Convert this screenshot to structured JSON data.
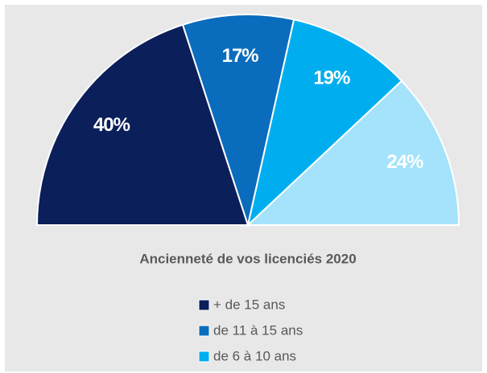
{
  "chart_data": {
    "type": "half-pie",
    "title": "Ancienneté de vos licenciés 2020",
    "categories": [
      "+ de 15 ans",
      "de 11 à 15 ans",
      "de 6 à 10 ans",
      null
    ],
    "values": [
      40,
      17,
      19,
      24
    ],
    "value_labels": [
      "40%",
      "17%",
      "19%",
      "24%"
    ],
    "colors": [
      "#0b1f5b",
      "#0a6cbd",
      "#00aeef",
      "#a4e3fb"
    ]
  }
}
